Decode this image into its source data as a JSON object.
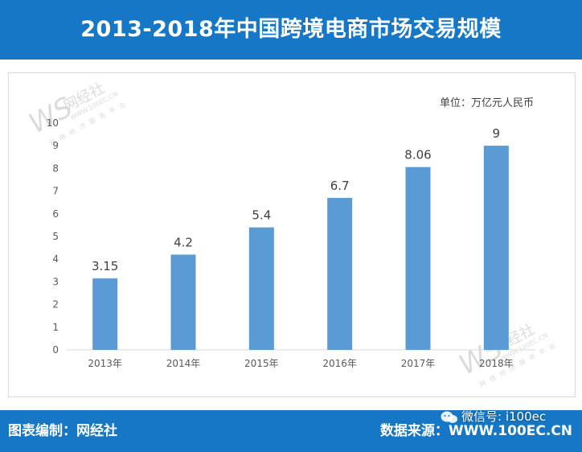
{
  "header": {
    "title": "2013-2018年中国跨境电商市场交易规模"
  },
  "chart_data": {
    "type": "bar",
    "title": "2013-2018年中国跨境电商市场交易规模",
    "unit_label": "单位：万亿元人民币",
    "categories": [
      "2013年",
      "2014年",
      "2015年",
      "2016年",
      "2017年",
      "2018年"
    ],
    "values": [
      3.15,
      4.2,
      5.4,
      6.7,
      8.06,
      9
    ],
    "value_labels": [
      "3.15",
      "4.2",
      "5.4",
      "6.7",
      "8.06",
      "9"
    ],
    "ylim": [
      0,
      10
    ],
    "yticks": [
      "0",
      "1",
      "2",
      "3",
      "4",
      "5",
      "6",
      "7",
      "8",
      "9",
      "10"
    ],
    "grid": false,
    "bar_color": "#5b9bd5"
  },
  "footer": {
    "left": "图表编制：网经社",
    "right": "数据来源：WWW.100EC.CN",
    "wechat": "微信号: i100ec"
  },
  "watermark": {
    "logo": "WS网经社",
    "url": "WWW.100EC.CN",
    "tagline": "网络经济服务平台"
  },
  "colors": {
    "accent": "#1577c6",
    "bar": "#5b9bd5",
    "text": "#404040"
  }
}
